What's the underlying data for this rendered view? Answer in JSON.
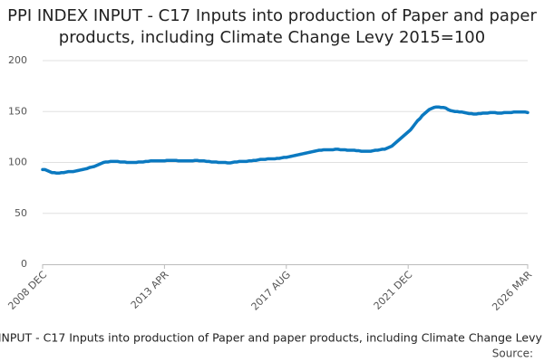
{
  "chart_data": {
    "type": "line",
    "title": "PPI INDEX INPUT - C17 Inputs into production of Paper and paper products, including Climate Change Levy 2015=100",
    "source": "Source:",
    "categories": [
      "2008 DEC",
      null,
      null,
      null,
      null,
      null,
      null,
      null,
      null,
      null,
      null,
      null,
      null,
      null,
      null,
      null,
      null,
      null,
      null,
      null,
      null,
      null,
      null,
      null,
      null,
      null,
      null,
      null,
      null,
      null,
      null,
      null,
      null,
      null,
      null,
      null,
      null,
      null,
      null,
      null,
      null,
      null,
      null,
      null,
      null,
      null,
      null,
      null,
      null,
      null,
      null,
      null,
      "2013 APR",
      null,
      null,
      null,
      null,
      null,
      null,
      null,
      null,
      null,
      null,
      null,
      null,
      null,
      null,
      null,
      null,
      null,
      null,
      null,
      null,
      null,
      null,
      null,
      null,
      null,
      null,
      null,
      null,
      null,
      null,
      null,
      null,
      null,
      null,
      null,
      null,
      null,
      null,
      null,
      null,
      null,
      null,
      null,
      null,
      null,
      null,
      null,
      null,
      null,
      null,
      null,
      "2017 AUG",
      null,
      null,
      null,
      null,
      null,
      null,
      null,
      null,
      null,
      null,
      null,
      null,
      null,
      null,
      null,
      null,
      null,
      null,
      null,
      null,
      null,
      null,
      null,
      null,
      null,
      null,
      null,
      null,
      null,
      null,
      null,
      null,
      null,
      null,
      null,
      null,
      null,
      null,
      null,
      null,
      null,
      null,
      null,
      null,
      null,
      null,
      null,
      null,
      null,
      null,
      null,
      "2021 DEC",
      null,
      null,
      null,
      null,
      null,
      null,
      null,
      null,
      null,
      null,
      null,
      null,
      null,
      null,
      null,
      null,
      null,
      null,
      null,
      null,
      null,
      null,
      null,
      null,
      null,
      null,
      null,
      null,
      null,
      null,
      null,
      null,
      null,
      null,
      null,
      null,
      null,
      null,
      null,
      null,
      null,
      null,
      null,
      null,
      null,
      null,
      null,
      null,
      null,
      null,
      "2026 MAR"
    ],
    "series": [
      {
        "name": "PPI INDEX INPUT - C17 Inputs into production of Paper and paper products, including Climate Change Levy 2015=100",
        "color": "#0b79c0",
        "values": [
          93,
          93,
          92,
          91,
          90,
          90,
          89.5,
          89.5,
          90,
          90,
          90.5,
          91,
          91,
          91,
          91.5,
          92,
          92.5,
          93,
          93.5,
          94,
          95,
          95.5,
          96,
          97,
          98,
          99,
          100,
          100.5,
          100.5,
          101,
          101,
          101,
          101,
          100.5,
          100.5,
          100.5,
          100,
          100,
          100,
          100,
          100,
          100.5,
          100.5,
          100.5,
          101,
          101,
          101.5,
          101.5,
          101.5,
          101.5,
          101.5,
          101.5,
          101.5,
          102,
          102,
          102,
          102,
          102,
          101.5,
          101.5,
          101.5,
          101.5,
          101.5,
          101.5,
          101.5,
          102,
          102,
          101.5,
          101.5,
          101.5,
          101,
          101,
          100.5,
          100.5,
          100.5,
          100,
          100,
          100,
          100,
          99.5,
          99.5,
          100,
          100.5,
          100.5,
          101,
          101,
          101,
          101,
          101.5,
          101.5,
          102,
          102,
          102.5,
          103,
          103,
          103,
          103.5,
          103.5,
          103.5,
          103.5,
          104,
          104,
          104.5,
          105,
          105,
          105.5,
          106,
          106.5,
          107,
          107.5,
          108,
          108.5,
          109,
          109.5,
          110,
          110.5,
          111,
          111.5,
          112,
          112,
          112.5,
          112.5,
          112.5,
          112.5,
          112.5,
          113,
          113,
          112.5,
          112.5,
          112.5,
          112,
          112,
          112,
          112,
          111.5,
          111.5,
          111,
          111,
          111,
          111,
          111,
          111.5,
          112,
          112,
          112.5,
          113,
          113,
          114,
          115,
          116,
          118,
          120,
          122,
          124,
          126,
          128,
          130,
          132,
          135,
          138,
          141,
          143,
          146,
          148,
          150,
          152,
          153,
          154,
          154.5,
          154.5,
          154,
          154,
          153.5,
          152,
          151,
          150.5,
          150,
          150,
          149.5,
          149.5,
          149,
          148.5,
          148,
          148,
          147.5,
          147.5,
          148,
          148,
          148.5,
          148.5,
          148.5,
          149,
          149,
          149,
          148.5,
          148.5,
          148.5,
          149,
          149,
          149,
          149,
          149.5,
          149.5,
          149.5,
          149.5,
          149.5,
          149.5,
          149
        ]
      }
    ],
    "ylim": [
      0,
      200
    ],
    "yticks": [
      0,
      50,
      100,
      150,
      200
    ],
    "grid": true
  }
}
